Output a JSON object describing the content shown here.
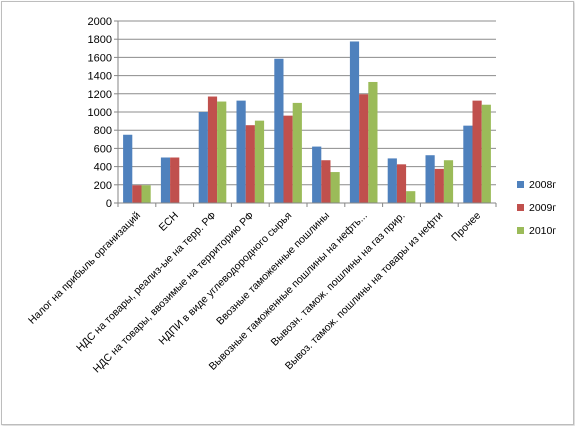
{
  "chart_data": {
    "type": "bar",
    "categories": [
      "Налог на прибыль организаций",
      "ЕСН",
      "НДС на товары, реализ-ые на терр. РФ",
      "НДС на товары, ввозимые на территорию РФ",
      "НДПИ в виде углеводородного сырья",
      "Ввозные таможенные пошлины",
      "Вывозные таможенные пошлины на нефть...",
      "Вывозн. тамож. пошлины на газ прир.",
      "Вывоз. тамож. пошлины на товары из нефти",
      "Прочее"
    ],
    "series": [
      {
        "name": "2008г",
        "color": "#4F81BD",
        "values": [
          750,
          500,
          1000,
          1125,
          1585,
          620,
          1775,
          490,
          525,
          850
        ]
      },
      {
        "name": "2009г",
        "color": "#C0504D",
        "values": [
          195,
          500,
          1170,
          855,
          960,
          470,
          1195,
          425,
          375,
          1125
        ]
      },
      {
        "name": "2010г",
        "color": "#9BBB59",
        "values": [
          195,
          0,
          1115,
          905,
          1100,
          340,
          1330,
          130,
          470,
          1080
        ]
      }
    ],
    "yticks": [
      0,
      200,
      400,
      600,
      800,
      1000,
      1200,
      1400,
      1600,
      1800,
      2000
    ],
    "ylim": [
      0,
      2000
    ],
    "grid": true,
    "legend_position": "right"
  }
}
